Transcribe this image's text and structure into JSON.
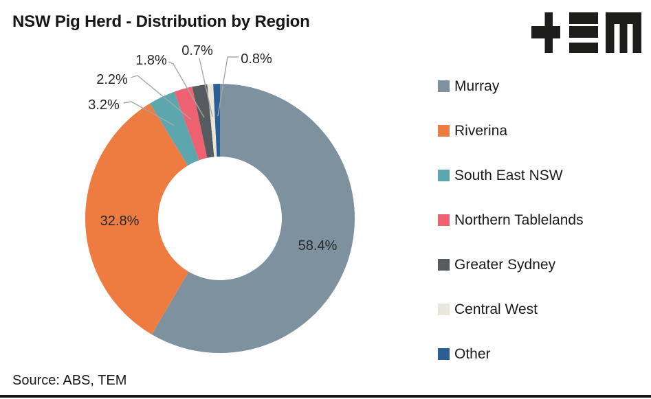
{
  "title": "NSW Pig Herd - Distribution by Region",
  "source": "Source: ABS, TEM",
  "logo": {
    "name": "tem-logo",
    "color": "#1d1d1b"
  },
  "footer_bar_color": "#14141a",
  "chart_data": {
    "type": "pie",
    "subtype": "donut",
    "title": "NSW Pig Herd - Distribution by Region",
    "categories": [
      "Murray",
      "Riverina",
      "South East NSW",
      "Northern Tablelands",
      "Greater Sydney",
      "Central West",
      "Other"
    ],
    "values": [
      58.4,
      32.8,
      3.2,
      2.2,
      1.8,
      0.7,
      0.8
    ],
    "labels": [
      "58.4%",
      "32.8%",
      "3.2%",
      "2.2%",
      "1.8%",
      "0.7%",
      "0.8%"
    ],
    "colors": [
      "#7E919E",
      "#EE7C41",
      "#5CA7AE",
      "#ED6170",
      "#565B5F",
      "#E9E7DA",
      "#2A5F96"
    ],
    "start_angle_deg": 0,
    "direction": "clockwise",
    "inner_radius_ratio": 0.46,
    "leader_line_color": "#A6A6A6",
    "label_color": "#262626",
    "legend_position": "right",
    "source": "Source: ABS, TEM"
  },
  "legend": {
    "items": [
      {
        "label": "Murray",
        "color": "#7E919E"
      },
      {
        "label": "Riverina",
        "color": "#EE7C41"
      },
      {
        "label": "South East NSW",
        "color": "#5CA7AE"
      },
      {
        "label": "Northern Tablelands",
        "color": "#ED6170"
      },
      {
        "label": "Greater Sydney",
        "color": "#565B5F"
      },
      {
        "label": "Central West",
        "color": "#E9E7DA"
      },
      {
        "label": "Other",
        "color": "#2A5F96"
      }
    ]
  }
}
